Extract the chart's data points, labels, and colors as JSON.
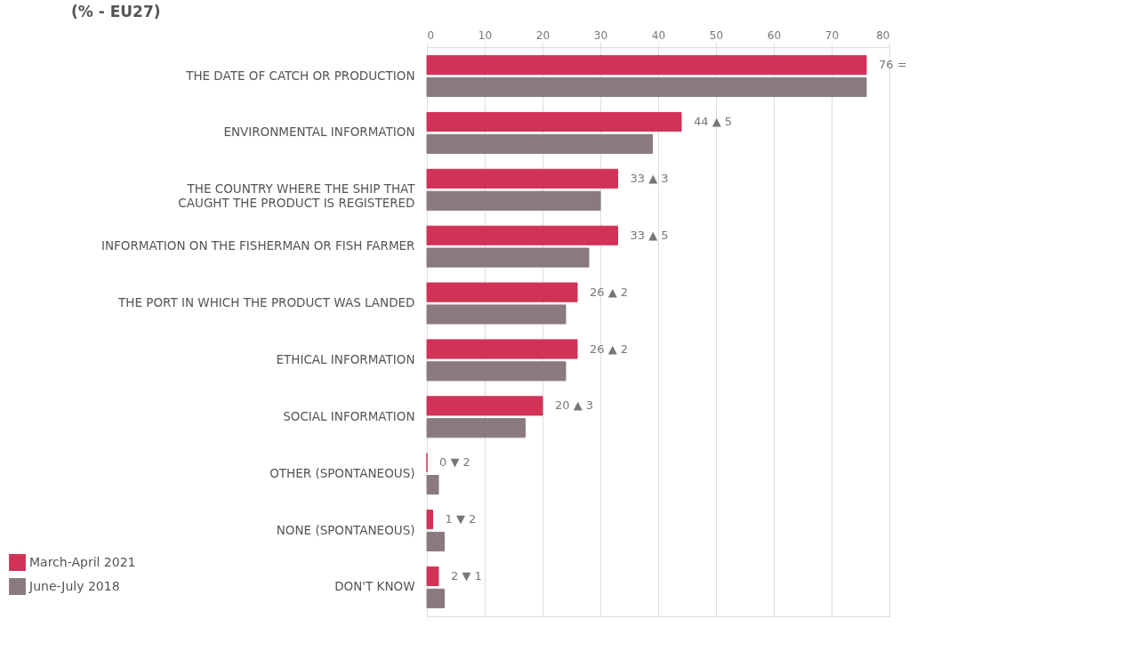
{
  "chart_data": {
    "type": "bar",
    "orientation": "horizontal",
    "title": "(% - EU27)",
    "categories": [
      "THE DATE OF CATCH OR PRODUCTION",
      "ENVIRONMENTAL INFORMATION",
      "THE COUNTRY WHERE THE SHIP THAT\nCAUGHT THE PRODUCT IS REGISTERED",
      "INFORMATION ON THE FISHERMAN OR FISH FARMER",
      "THE PORT IN WHICH THE PRODUCT WAS LANDED",
      "ETHICAL INFORMATION",
      "SOCIAL INFORMATION",
      "OTHER (SPONTANEOUS)",
      "NONE (SPONTANEOUS)",
      "DON'T KNOW"
    ],
    "series": [
      {
        "name": "March-April 2021",
        "color": "#d03356",
        "values": [
          76,
          44,
          33,
          33,
          26,
          26,
          20,
          0,
          1,
          2
        ],
        "value_labels": [
          "76 =",
          "44 ▲ 5",
          "33 ▲ 3",
          "33 ▲ 5",
          "26 ▲ 2",
          "26 ▲ 2",
          "20 ▲ 3",
          "0 ▼ 2",
          "1 ▼ 2",
          "2 ▼ 1"
        ]
      },
      {
        "name": "June-July 2018",
        "color": "#8a7a7e",
        "values": [
          76,
          39,
          30,
          28,
          24,
          24,
          17,
          2,
          3,
          3
        ]
      }
    ],
    "xlim": [
      0,
      80
    ],
    "xticks": [
      0,
      10,
      20,
      30,
      40,
      50,
      60,
      70,
      80
    ],
    "grid": "x",
    "legend": "bottom left"
  }
}
